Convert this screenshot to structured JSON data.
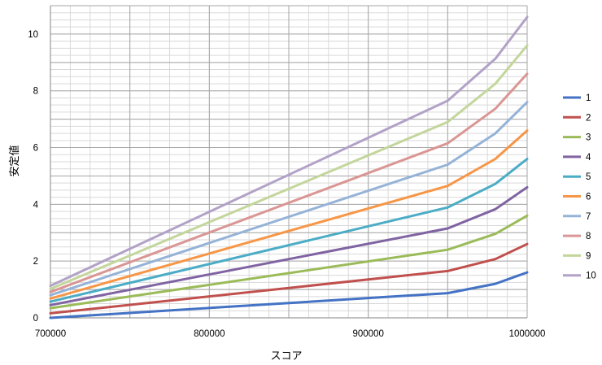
{
  "chart_data": {
    "type": "line",
    "xlabel": "スコア",
    "ylabel": "安定値",
    "xlim": [
      700000,
      1000000
    ],
    "ylim": [
      0,
      11
    ],
    "x_ticks": [
      700000,
      800000,
      900000,
      1000000
    ],
    "y_ticks": [
      0,
      2,
      4,
      6,
      8,
      10
    ],
    "x_tick_labels": [
      "700000",
      "800000",
      "900000",
      "1000000"
    ],
    "y_tick_labels": [
      "0",
      "2",
      "4",
      "6",
      "8",
      "10"
    ],
    "grid": true,
    "legend_position": "right",
    "x": [
      700000,
      950000,
      980000,
      1000000
    ],
    "series": [
      {
        "name": "1",
        "color": "#4472c4",
        "values": [
          0.0,
          0.87,
          1.2,
          1.6
        ]
      },
      {
        "name": "2",
        "color": "#c0504d",
        "values": [
          0.16,
          1.65,
          2.07,
          2.6
        ]
      },
      {
        "name": "3",
        "color": "#9bbb59",
        "values": [
          0.34,
          2.4,
          2.96,
          3.6
        ]
      },
      {
        "name": "4",
        "color": "#8064a2",
        "values": [
          0.45,
          3.15,
          3.83,
          4.6
        ]
      },
      {
        "name": "5",
        "color": "#4bacc6",
        "values": [
          0.57,
          3.89,
          4.72,
          5.6
        ]
      },
      {
        "name": "6",
        "color": "#f79646",
        "values": [
          0.68,
          4.65,
          5.6,
          6.6
        ]
      },
      {
        "name": "7",
        "color": "#95b3d7",
        "values": [
          0.8,
          5.4,
          6.5,
          7.6
        ]
      },
      {
        "name": "8",
        "color": "#d99694",
        "values": [
          0.91,
          6.15,
          7.37,
          8.6
        ]
      },
      {
        "name": "9",
        "color": "#c3d69b",
        "values": [
          1.02,
          6.9,
          8.25,
          9.6
        ]
      },
      {
        "name": "10",
        "color": "#b2a2c7",
        "values": [
          1.13,
          7.65,
          9.13,
          10.6
        ]
      }
    ]
  }
}
